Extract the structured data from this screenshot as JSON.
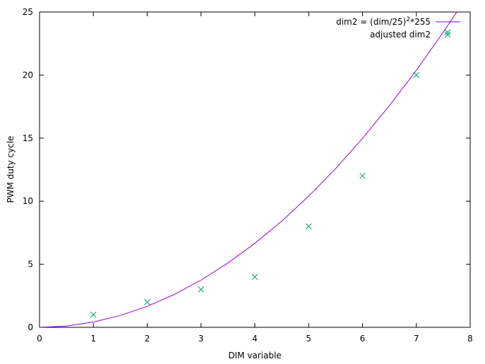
{
  "chart_data": {
    "type": "line_scatter",
    "xlabel": "DIM variable",
    "ylabel": "PWM duty cycle",
    "xlim": [
      0,
      8
    ],
    "ylim": [
      0,
      25
    ],
    "xticks": [
      0,
      1,
      2,
      3,
      4,
      5,
      6,
      7,
      8
    ],
    "yticks": [
      0,
      5,
      10,
      15,
      20,
      25
    ],
    "legend": "top-right",
    "series": [
      {
        "name": [
          "dim2 = (dim/25)",
          "2",
          "*255"
        ],
        "type": "line",
        "color": "#9400d3",
        "x": [
          0,
          0.5,
          1,
          1.5,
          2,
          2.5,
          3,
          3.5,
          4,
          4.5,
          5,
          5.5,
          6,
          6.5,
          7,
          7.5,
          7.75
        ],
        "values": [
          0,
          0.1,
          0.42,
          0.94,
          1.66,
          2.6,
          3.74,
          5.1,
          6.66,
          8.42,
          10.4,
          12.58,
          14.98,
          17.58,
          20.38,
          23.4,
          24.99
        ]
      },
      {
        "name": "adjusted dim2",
        "type": "scatter",
        "color": "#009e73",
        "x": [
          1,
          2,
          3,
          4,
          5,
          6,
          7,
          7.58
        ],
        "values": [
          1,
          2,
          3,
          4,
          8,
          12,
          20,
          23.4
        ]
      }
    ]
  }
}
